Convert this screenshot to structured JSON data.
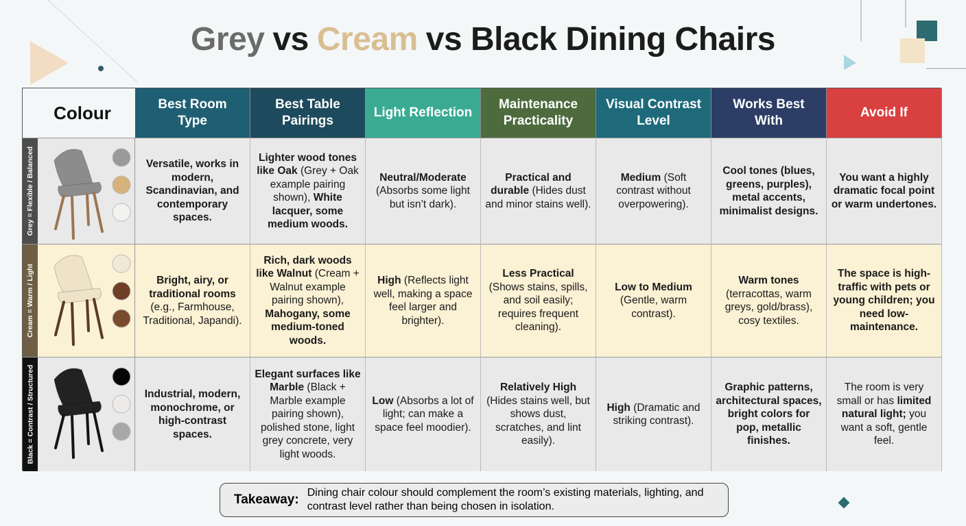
{
  "title": [
    {
      "text": "Grey",
      "color": "#6b6b6b"
    },
    {
      "text": "vs",
      "color": "#1c1c1c"
    },
    {
      "text": "Cream",
      "color": "#d8bf92"
    },
    {
      "text": "vs Black Dining Chairs",
      "color": "#1c1c1c"
    }
  ],
  "table": {
    "corner": "Colour",
    "columns": [
      {
        "label": "Best Room Type",
        "color": "#1f5f73"
      },
      {
        "label": "Best Table Pairings",
        "color": "#1d4a5c"
      },
      {
        "label": "Light Reflection",
        "color": "#3aab92"
      },
      {
        "label": "Maintenance Practicality",
        "color": "#4e6b3e"
      },
      {
        "label": "Visual Contrast Level",
        "color": "#1e6a7a"
      },
      {
        "label": "Works Best With",
        "color": "#2c3e66"
      },
      {
        "label": "Avoid If",
        "color": "#d94040"
      }
    ],
    "rows": [
      {
        "label": "Grey = Flexible / Balanced",
        "background": "#e9e9e9",
        "strip": "#4d4d4d",
        "chair_color": "#8c8c8c",
        "leg_color": "#9c7652",
        "swatches": [
          "#9a9a9a",
          "#d7b27c",
          "#f2f2f0"
        ],
        "cells": [
          [
            {
              "text": "Versatile, works in modern, Scandinavian, and contemporary spaces.",
              "bold": true
            }
          ],
          [
            {
              "text": "Lighter wood tones like Oak",
              "bold": true
            },
            {
              "text": "(Grey + Oak example pairing shown),",
              "bold": false
            },
            {
              "text": "White lacquer, some medium woods.",
              "bold": true
            }
          ],
          [
            {
              "text": "Neutral/Moderate",
              "bold": true
            },
            {
              "text": "(Absorbs some light but isn’t dark).",
              "bold": false
            }
          ],
          [
            {
              "text": "Practical and durable",
              "bold": true
            },
            {
              "text": "(Hides dust and minor stains well).",
              "bold": false
            }
          ],
          [
            {
              "text": "Medium",
              "bold": true
            },
            {
              "text": "(Soft contrast without overpowering).",
              "bold": false
            }
          ],
          [
            {
              "text": "Cool tones (blues, greens, purples), metal accents, minimalist designs.",
              "bold": true
            }
          ],
          [
            {
              "text": "You want a highly dramatic focal point or warm undertones.",
              "bold": true
            }
          ]
        ]
      },
      {
        "label": "Cream = Warm / Light",
        "background": "#fbf1d4",
        "strip": "#6e5e45",
        "chair_color": "#eee3c8",
        "leg_color": "#5c3b26",
        "swatches": [
          "#f1e9d6",
          "#6e3f24",
          "#7a4a2c"
        ],
        "cells": [
          [
            {
              "text": "Bright, airy, or traditional rooms",
              "bold": true
            },
            {
              "text": "(e.g., Farmhouse, Traditional, Japandi).",
              "bold": false
            }
          ],
          [
            {
              "text": "Rich, dark woods like Walnut",
              "bold": true
            },
            {
              "text": "(Cream + Walnut example pairing shown),",
              "bold": false
            },
            {
              "text": "Mahogany, some medium-toned woods.",
              "bold": true
            }
          ],
          [
            {
              "text": "High",
              "bold": true
            },
            {
              "text": "(Reflects light well, making a space feel larger and brighter).",
              "bold": false
            }
          ],
          [
            {
              "text": "Less Practical",
              "bold": true
            },
            {
              "text": "(Shows stains, spills, and soil easily; requires frequent cleaning).",
              "bold": false
            }
          ],
          [
            {
              "text": "Low to Medium",
              "bold": true
            },
            {
              "text": "(Gentle, warm contrast).",
              "bold": false
            }
          ],
          [
            {
              "text": "Warm tones",
              "bold": true
            },
            {
              "text": "(terracottas, warm greys, gold/brass), cosy textiles.",
              "bold": false
            }
          ],
          [
            {
              "text": "The space is high-traffic with pets or young children; you need low-maintenance.",
              "bold": true
            }
          ]
        ]
      },
      {
        "label": "Black = Contrast / Structured",
        "background": "#e9e9e9",
        "strip": "#111111",
        "chair_color": "#222222",
        "leg_color": "#151515",
        "swatches": [
          "#050505",
          "#ecebe8",
          "#a8a8a8"
        ],
        "cells": [
          [
            {
              "text": "Industrial, modern, monochrome, or high-contrast spaces.",
              "bold": true
            }
          ],
          [
            {
              "text": "Elegant surfaces like Marble",
              "bold": true
            },
            {
              "text": "(Black + Marble example pairing shown), polished stone, light grey concrete, very light woods.",
              "bold": false
            }
          ],
          [
            {
              "text": "Low",
              "bold": true
            },
            {
              "text": "(Absorbs a lot of light; can make a space feel moodier).",
              "bold": false
            }
          ],
          [
            {
              "text": "Relatively High",
              "bold": true
            },
            {
              "text": "(Hides stains well, but shows dust, scratches, and lint easily).",
              "bold": false
            }
          ],
          [
            {
              "text": "High",
              "bold": true
            },
            {
              "text": "(Dramatic and striking contrast).",
              "bold": false
            }
          ],
          [
            {
              "text": "Graphic patterns, architectural spaces, bright colors for pop, metallic finishes.",
              "bold": true
            }
          ],
          [
            {
              "text": "The room is very small or has",
              "bold": false
            },
            {
              "text": "limited natural light;",
              "bold": true
            },
            {
              "text": "you want a soft, gentle feel.",
              "bold": false
            }
          ]
        ]
      }
    ]
  },
  "takeaway": {
    "label": "Takeaway:",
    "text": "Dining chair colour should complement the room’s existing materials, lighting, and contrast level rather than being chosen in isolation."
  }
}
